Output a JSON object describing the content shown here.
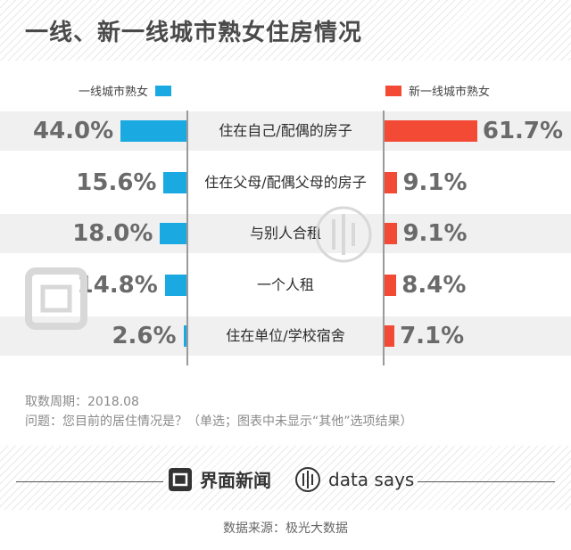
{
  "title": "一线、新一线城市熟女住房情况",
  "colors": {
    "left": "#1aa9e0",
    "right": "#f24a35"
  },
  "chart_data": {
    "type": "bar",
    "categories": [
      "住在自己/配偶的房子",
      "住在父母/配偶父母的房子",
      "与别人合租",
      "一个人租",
      "住在单位/学校宿舍"
    ],
    "series": [
      {
        "name": "一线城市熟女",
        "values": [
          44.0,
          15.6,
          18.0,
          14.8,
          2.6
        ],
        "labels": [
          "44.0%",
          "15.6%",
          "18.0%",
          "14.8%",
          "2.6%"
        ]
      },
      {
        "name": "新一线城市熟女",
        "values": [
          61.7,
          9.1,
          9.1,
          8.4,
          7.1
        ],
        "labels": [
          "61.7%",
          "9.1%",
          "9.1%",
          "8.4%",
          "7.1%"
        ]
      }
    ],
    "unit": "%"
  },
  "meta": {
    "period": "取数周期：2018.08",
    "question": "问题：您目前的居住情况是？（单选；图表中未显示“其他”选项结果）"
  },
  "brands": {
    "jiemian": "界面新闻",
    "datasays": "data says"
  },
  "source": "数据来源：极光大数据"
}
